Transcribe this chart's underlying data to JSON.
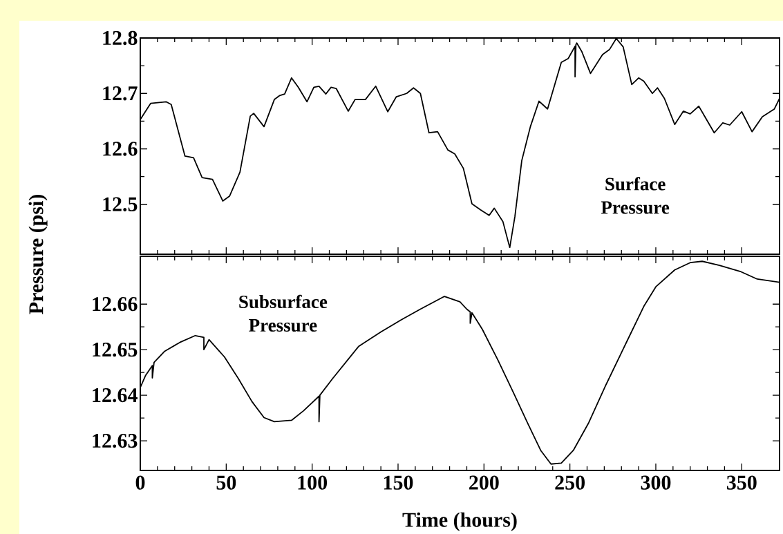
{
  "chart_data": [
    {
      "type": "line",
      "ylabel": "Pressure (psi)",
      "annotations": [
        "Surface Pressure"
      ],
      "xlim": [
        0,
        372
      ],
      "ylim": [
        12.41,
        12.8
      ],
      "xticks": [
        0,
        50,
        100,
        150,
        200,
        250,
        300,
        350
      ],
      "yticks": [
        12.5,
        12.6,
        12.7,
        12.8
      ],
      "tick_labels": "y",
      "grid": false,
      "series": [
        {
          "color": "#000000",
          "x": [
            0,
            6,
            15,
            18,
            26,
            31,
            36,
            42,
            48,
            52,
            58,
            64,
            66,
            72,
            78,
            81,
            84,
            88,
            92,
            97,
            101,
            104,
            108,
            111,
            114,
            121,
            125,
            131,
            137,
            144,
            149,
            155,
            159,
            163,
            168,
            173,
            179,
            183,
            188,
            193,
            198,
            203,
            206,
            211,
            215,
            218,
            222,
            227,
            232,
            237,
            245,
            249,
            253,
            253,
            253.5,
            254,
            257,
            262,
            269,
            273,
            277,
            281,
            286,
            290,
            293,
            298,
            301,
            305,
            311,
            316,
            320,
            325,
            334,
            339,
            343,
            350,
            356,
            362,
            369,
            372
          ],
          "values": [
            12.653,
            12.682,
            12.685,
            12.68,
            12.587,
            12.584,
            12.548,
            12.545,
            12.506,
            12.515,
            12.558,
            12.659,
            12.664,
            12.64,
            12.689,
            12.696,
            12.699,
            12.728,
            12.711,
            12.685,
            12.711,
            12.713,
            12.699,
            12.711,
            12.709,
            12.668,
            12.689,
            12.689,
            12.713,
            12.667,
            12.694,
            12.7,
            12.71,
            12.7,
            12.629,
            12.631,
            12.598,
            12.591,
            12.565,
            12.501,
            12.49,
            12.48,
            12.493,
            12.469,
            12.422,
            12.478,
            12.579,
            12.64,
            12.686,
            12.672,
            12.756,
            12.763,
            12.785,
            12.73,
            12.788,
            12.791,
            12.775,
            12.736,
            12.77,
            12.779,
            12.799,
            12.784,
            12.716,
            12.728,
            12.722,
            12.7,
            12.71,
            12.691,
            12.644,
            12.668,
            12.663,
            12.677,
            12.629,
            12.647,
            12.643,
            12.667,
            12.631,
            12.658,
            12.672,
            12.691
          ]
        }
      ]
    },
    {
      "type": "line",
      "xlabel": "Time (hours)",
      "annotations": [
        "Subsurface Pressure"
      ],
      "xlim": [
        0,
        372
      ],
      "ylim": [
        12.6235,
        12.6705
      ],
      "xticks": [
        0,
        50,
        100,
        150,
        200,
        250,
        300,
        350
      ],
      "yticks": [
        12.63,
        12.64,
        12.65,
        12.66
      ],
      "grid": false,
      "series": [
        {
          "color": "#000000",
          "x": [
            0,
            3,
            7,
            7,
            8,
            14,
            23,
            32,
            37,
            37,
            40,
            49,
            57,
            65,
            72,
            78,
            88,
            95,
            104,
            104,
            104.5,
            112,
            127,
            140,
            152,
            163,
            177,
            186,
            190,
            192,
            192,
            193,
            199,
            208,
            217,
            226,
            233,
            239,
            245,
            252,
            261,
            271,
            283,
            293,
            300,
            311,
            320,
            327,
            337,
            349,
            359,
            372
          ],
          "values": [
            12.6417,
            12.6443,
            12.6465,
            12.6438,
            12.6472,
            12.6496,
            12.6516,
            12.6531,
            12.6527,
            12.65,
            12.6522,
            12.6484,
            12.6437,
            12.6386,
            12.6351,
            12.6342,
            12.6345,
            12.6366,
            12.6398,
            12.6342,
            12.64,
            12.6437,
            12.6507,
            12.6539,
            12.6566,
            12.6589,
            12.6617,
            12.6605,
            12.6589,
            12.6583,
            12.6558,
            12.6581,
            12.6545,
            12.6478,
            12.6407,
            12.6334,
            12.6279,
            12.6249,
            12.6251,
            12.6279,
            12.634,
            12.6423,
            12.6517,
            12.6595,
            12.6638,
            12.6675,
            12.6691,
            12.6694,
            12.6685,
            12.6672,
            12.6655,
            12.6648
          ]
        }
      ]
    }
  ]
}
